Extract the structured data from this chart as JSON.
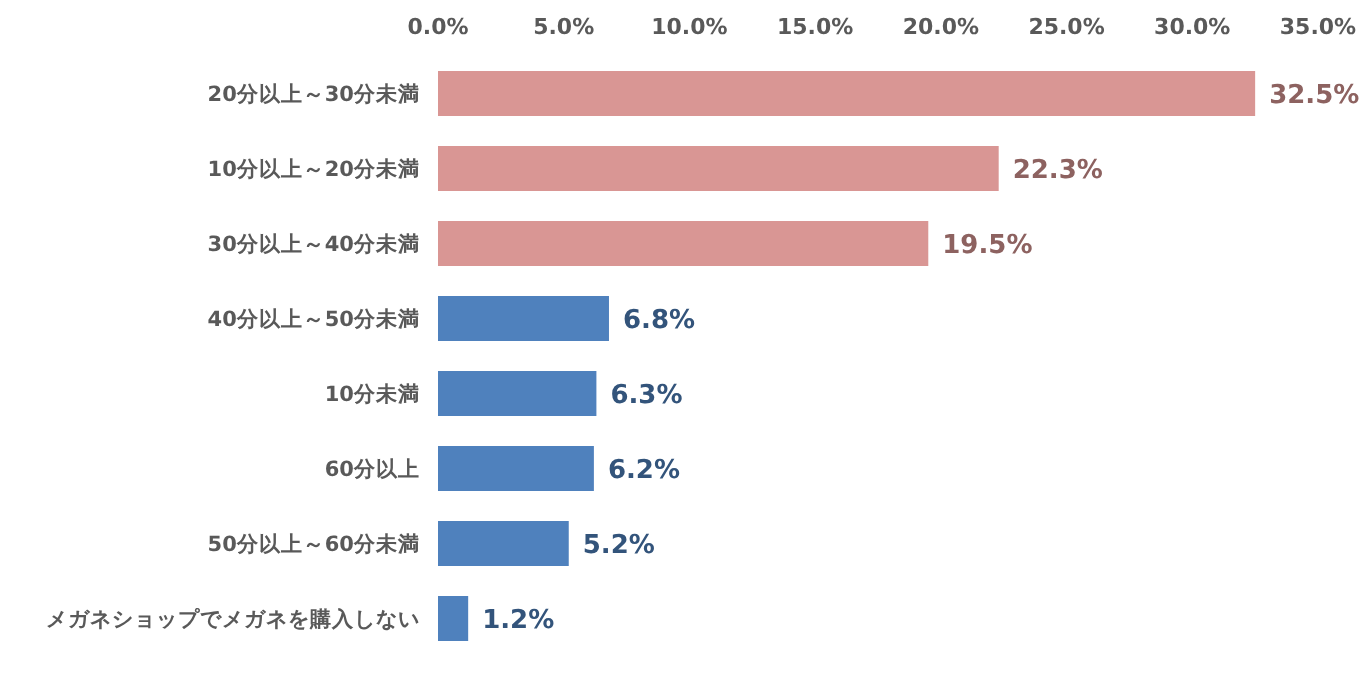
{
  "chart_data": {
    "type": "bar",
    "orientation": "horizontal",
    "categories": [
      "20分以上～30分未満",
      "10分以上～20分未満",
      "30分以上～40分未満",
      "40分以上～50分未満",
      "10分未満",
      "60分以上",
      "50分以上～60分未満",
      "メガネショップでメガネを購入しない"
    ],
    "values": [
      32.5,
      22.3,
      19.5,
      6.8,
      6.3,
      6.2,
      5.2,
      1.2
    ],
    "value_labels": [
      "32.5%",
      "22.3%",
      "19.5%",
      "6.8%",
      "6.3%",
      "6.2%",
      "5.2%",
      "1.2%"
    ],
    "colors": [
      "#d99694",
      "#d99694",
      "#d99694",
      "#4f81bd",
      "#4f81bd",
      "#4f81bd",
      "#4f81bd",
      "#4f81bd"
    ],
    "xlim": [
      0,
      35
    ],
    "xticks": [
      {
        "value": 0,
        "label": "0.0%"
      },
      {
        "value": 5,
        "label": "5.0%"
      },
      {
        "value": 10,
        "label": "10.0%"
      },
      {
        "value": 15,
        "label": "15.0%"
      },
      {
        "value": 20,
        "label": "20.0%"
      },
      {
        "value": 25,
        "label": "25.0%"
      },
      {
        "value": 30,
        "label": "30.0%"
      },
      {
        "value": 35,
        "label": "35.0%"
      }
    ],
    "grid": false
  }
}
